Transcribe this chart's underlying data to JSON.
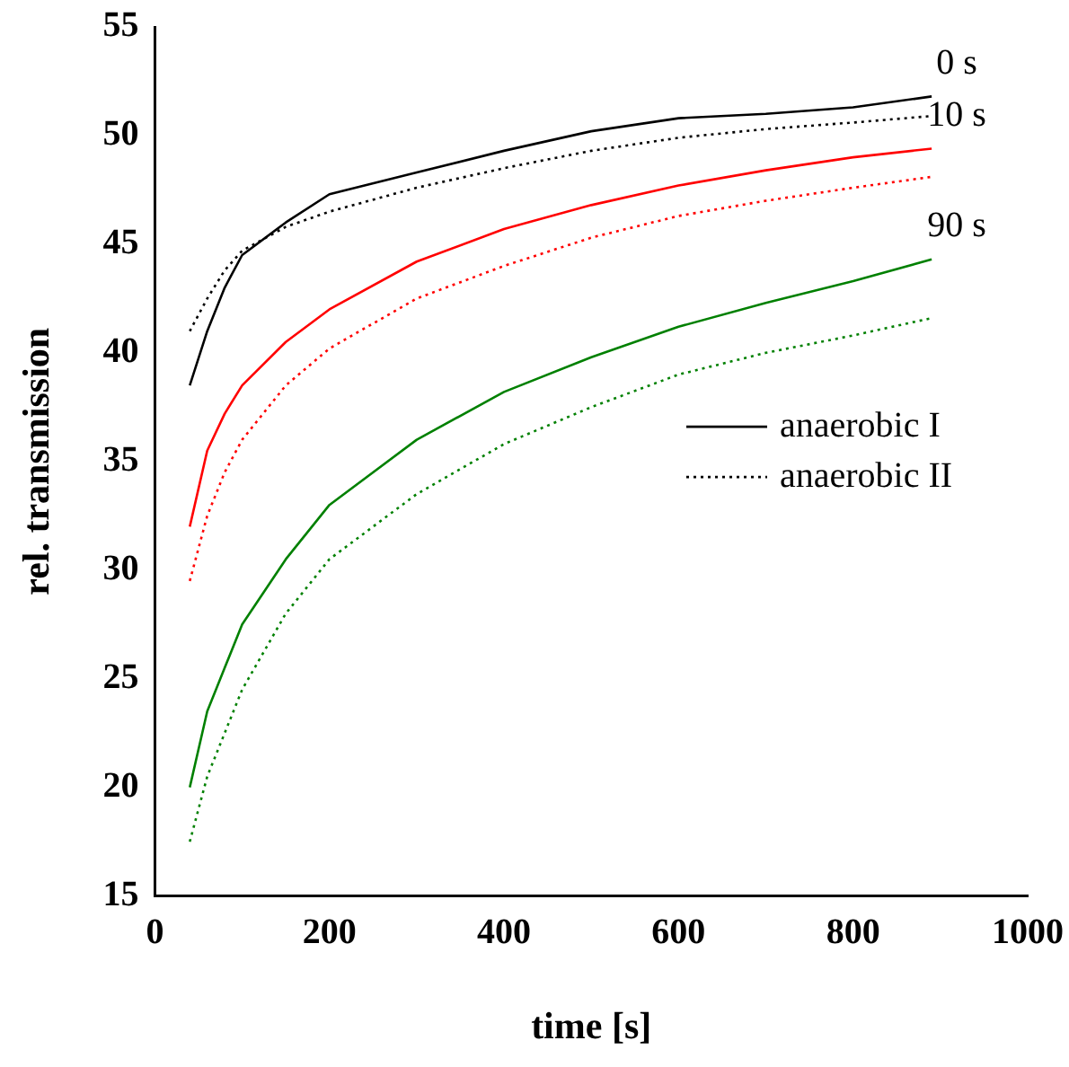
{
  "chart_data": {
    "type": "line",
    "xlabel": "time [s]",
    "ylabel": "rel. transmission",
    "x": [
      40,
      60,
      80,
      100,
      150,
      200,
      300,
      400,
      500,
      600,
      700,
      800,
      890
    ],
    "xlim": [
      0,
      1000
    ],
    "xticks": [
      0,
      200,
      400,
      600,
      800,
      1000
    ],
    "ylim": [
      15,
      55
    ],
    "yticks": [
      15,
      20,
      25,
      30,
      35,
      40,
      45,
      50,
      55
    ],
    "grid": false,
    "legend": "right",
    "marker": "none",
    "series": [
      {
        "name": "anaerobic I",
        "color": "#000000",
        "line_style": "solid",
        "values": [
          38.5,
          41,
          43,
          44.5,
          46,
          47.3,
          48.3,
          49.3,
          50.2,
          50.8,
          51,
          51.3,
          51.8
        ]
      },
      {
        "name": "anaerobic II",
        "color": "#000000",
        "line_style": "dotted",
        "values": [
          41,
          42.5,
          43.8,
          44.7,
          45.8,
          46.5,
          47.6,
          48.5,
          49.3,
          49.9,
          50.3,
          50.6,
          50.9
        ]
      },
      {
        "color": "#ff0000",
        "line_style": "solid",
        "values": [
          32,
          35.5,
          37.2,
          38.5,
          40.5,
          42,
          44.2,
          45.7,
          46.8,
          47.7,
          48.4,
          49,
          49.4
        ]
      },
      {
        "color": "#ff0000",
        "line_style": "dotted",
        "values": [
          29.5,
          32.5,
          34.5,
          36,
          38.5,
          40.2,
          42.5,
          44,
          45.3,
          46.3,
          47,
          47.6,
          48.1
        ]
      },
      {
        "color": "#008000",
        "line_style": "solid",
        "values": [
          20,
          23.5,
          25.5,
          27.5,
          30.5,
          33,
          36,
          38.2,
          39.8,
          41.2,
          42.3,
          43.3,
          44.3
        ]
      },
      {
        "color": "#008000",
        "line_style": "dotted",
        "values": [
          17.5,
          20.5,
          22.5,
          24.5,
          28,
          30.5,
          33.5,
          35.8,
          37.5,
          39,
          40,
          40.8,
          41.6
        ]
      }
    ],
    "annotations": [
      "0 s",
      "10 s",
      "90 s"
    ]
  }
}
